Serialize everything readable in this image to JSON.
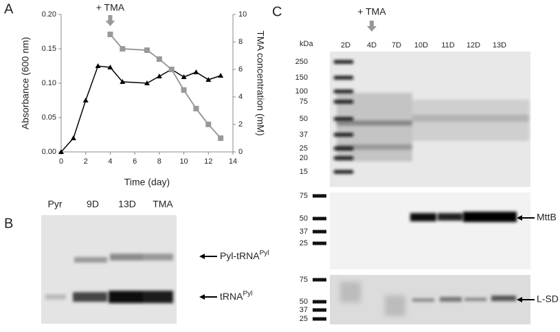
{
  "panels": [
    "A",
    "B",
    "C"
  ],
  "chart_data": {
    "type": "line",
    "xlabel": "Time (day)",
    "ylabel": "Absorbance (600 nm)",
    "y2label": "TMA concentration (mM)",
    "annotation": {
      "text": "+ TMA",
      "x": 4
    },
    "xlim": [
      0,
      14
    ],
    "xticks": [
      0,
      2,
      4,
      6,
      8,
      10,
      12,
      14
    ],
    "ylim": [
      0,
      0.2
    ],
    "yticks": [
      {
        "value": 0,
        "label": "0.00"
      },
      {
        "value": 0.05,
        "label": "0.05"
      },
      {
        "value": 0.1,
        "label": "0.10"
      },
      {
        "value": 0.15,
        "label": "0.15"
      },
      {
        "value": 0.2,
        "label": "0.20"
      }
    ],
    "y2lim": [
      0,
      10
    ],
    "y2ticks": [
      0,
      2,
      4,
      6,
      8,
      10
    ],
    "series": [
      {
        "color": "#000000",
        "marker": "triangle",
        "x": [
          0,
          1,
          2,
          3,
          4,
          5,
          7,
          8,
          9,
          10,
          11,
          12,
          13
        ],
        "values": [
          0,
          0.02,
          0.075,
          0.125,
          0.123,
          0.102,
          0.1,
          0.11,
          0.12,
          0.109,
          0.116,
          0.105,
          0.111
        ]
      },
      {
        "color": "#999999",
        "marker": "square",
        "axis": "y2",
        "x": [
          4,
          5,
          7,
          8,
          9,
          10,
          11,
          12,
          13
        ],
        "values": [
          8.55,
          7.5,
          7.4,
          6.75,
          6.0,
          4.5,
          3.15,
          2.0,
          1.0
        ]
      }
    ]
  },
  "gel_b": {
    "lanes": [
      "Pyr",
      "9D",
      "13D",
      "TMA"
    ],
    "bands": [
      {
        "text": "Pyl-tRNA",
        "sup": "Pyl"
      },
      {
        "text": "tRNA",
        "sup": "Pyl"
      }
    ]
  },
  "gel_c": {
    "kda": "kDa",
    "annotation": "+ TMA",
    "lanes": [
      "2D",
      "4D",
      "7D",
      "10D",
      "11D",
      "12D",
      "13D"
    ],
    "ladder_top": [
      "250",
      "150",
      "100",
      "75",
      "50",
      "37",
      "25",
      "20",
      "15"
    ],
    "ladder_mid": [
      "75",
      "50",
      "37",
      "25"
    ],
    "ladder_bot": [
      "75",
      "50",
      "37",
      "25"
    ],
    "proteins": [
      "MttB",
      "L-SD"
    ]
  }
}
